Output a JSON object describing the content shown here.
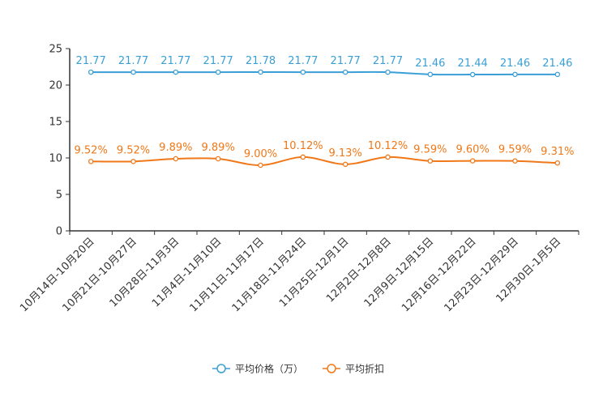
{
  "chart_data": {
    "type": "line",
    "categories": [
      "10月14日-10月20日",
      "10月21日-10月27日",
      "10月28日-11月3日",
      "11月4日-11月10日",
      "11月11日-11月17日",
      "11月18日-11月24日",
      "11月25日-12月1日",
      "12月2日-12月8日",
      "12月9日-12月15日",
      "12月16日-12月22日",
      "12月23日-12月29日",
      "12月30日-1月5日"
    ],
    "series": [
      {
        "name": "平均价格（万）",
        "color": "#3a9fd6",
        "values": [
          21.77,
          21.77,
          21.77,
          21.77,
          21.78,
          21.77,
          21.77,
          21.77,
          21.46,
          21.44,
          21.46,
          21.46
        ],
        "labels": [
          "21.77",
          "21.77",
          "21.77",
          "21.77",
          "21.78",
          "21.77",
          "21.77",
          "21.77",
          "21.46",
          "21.44",
          "21.46",
          "21.46"
        ]
      },
      {
        "name": "平均折扣",
        "color": "#f07818",
        "values": [
          9.52,
          9.52,
          9.89,
          9.89,
          9.0,
          10.12,
          9.13,
          10.12,
          9.59,
          9.6,
          9.59,
          9.31
        ],
        "labels": [
          "9.52%",
          "9.52%",
          "9.89%",
          "9.89%",
          "9.00%",
          "10.12%",
          "9.13%",
          "10.12%",
          "9.59%",
          "9.60%",
          "9.59%",
          "9.31%"
        ]
      }
    ],
    "ylim": [
      0,
      25
    ],
    "yticks": [
      0,
      5,
      10,
      15,
      20,
      25
    ],
    "legend_position": "bottom-center"
  }
}
